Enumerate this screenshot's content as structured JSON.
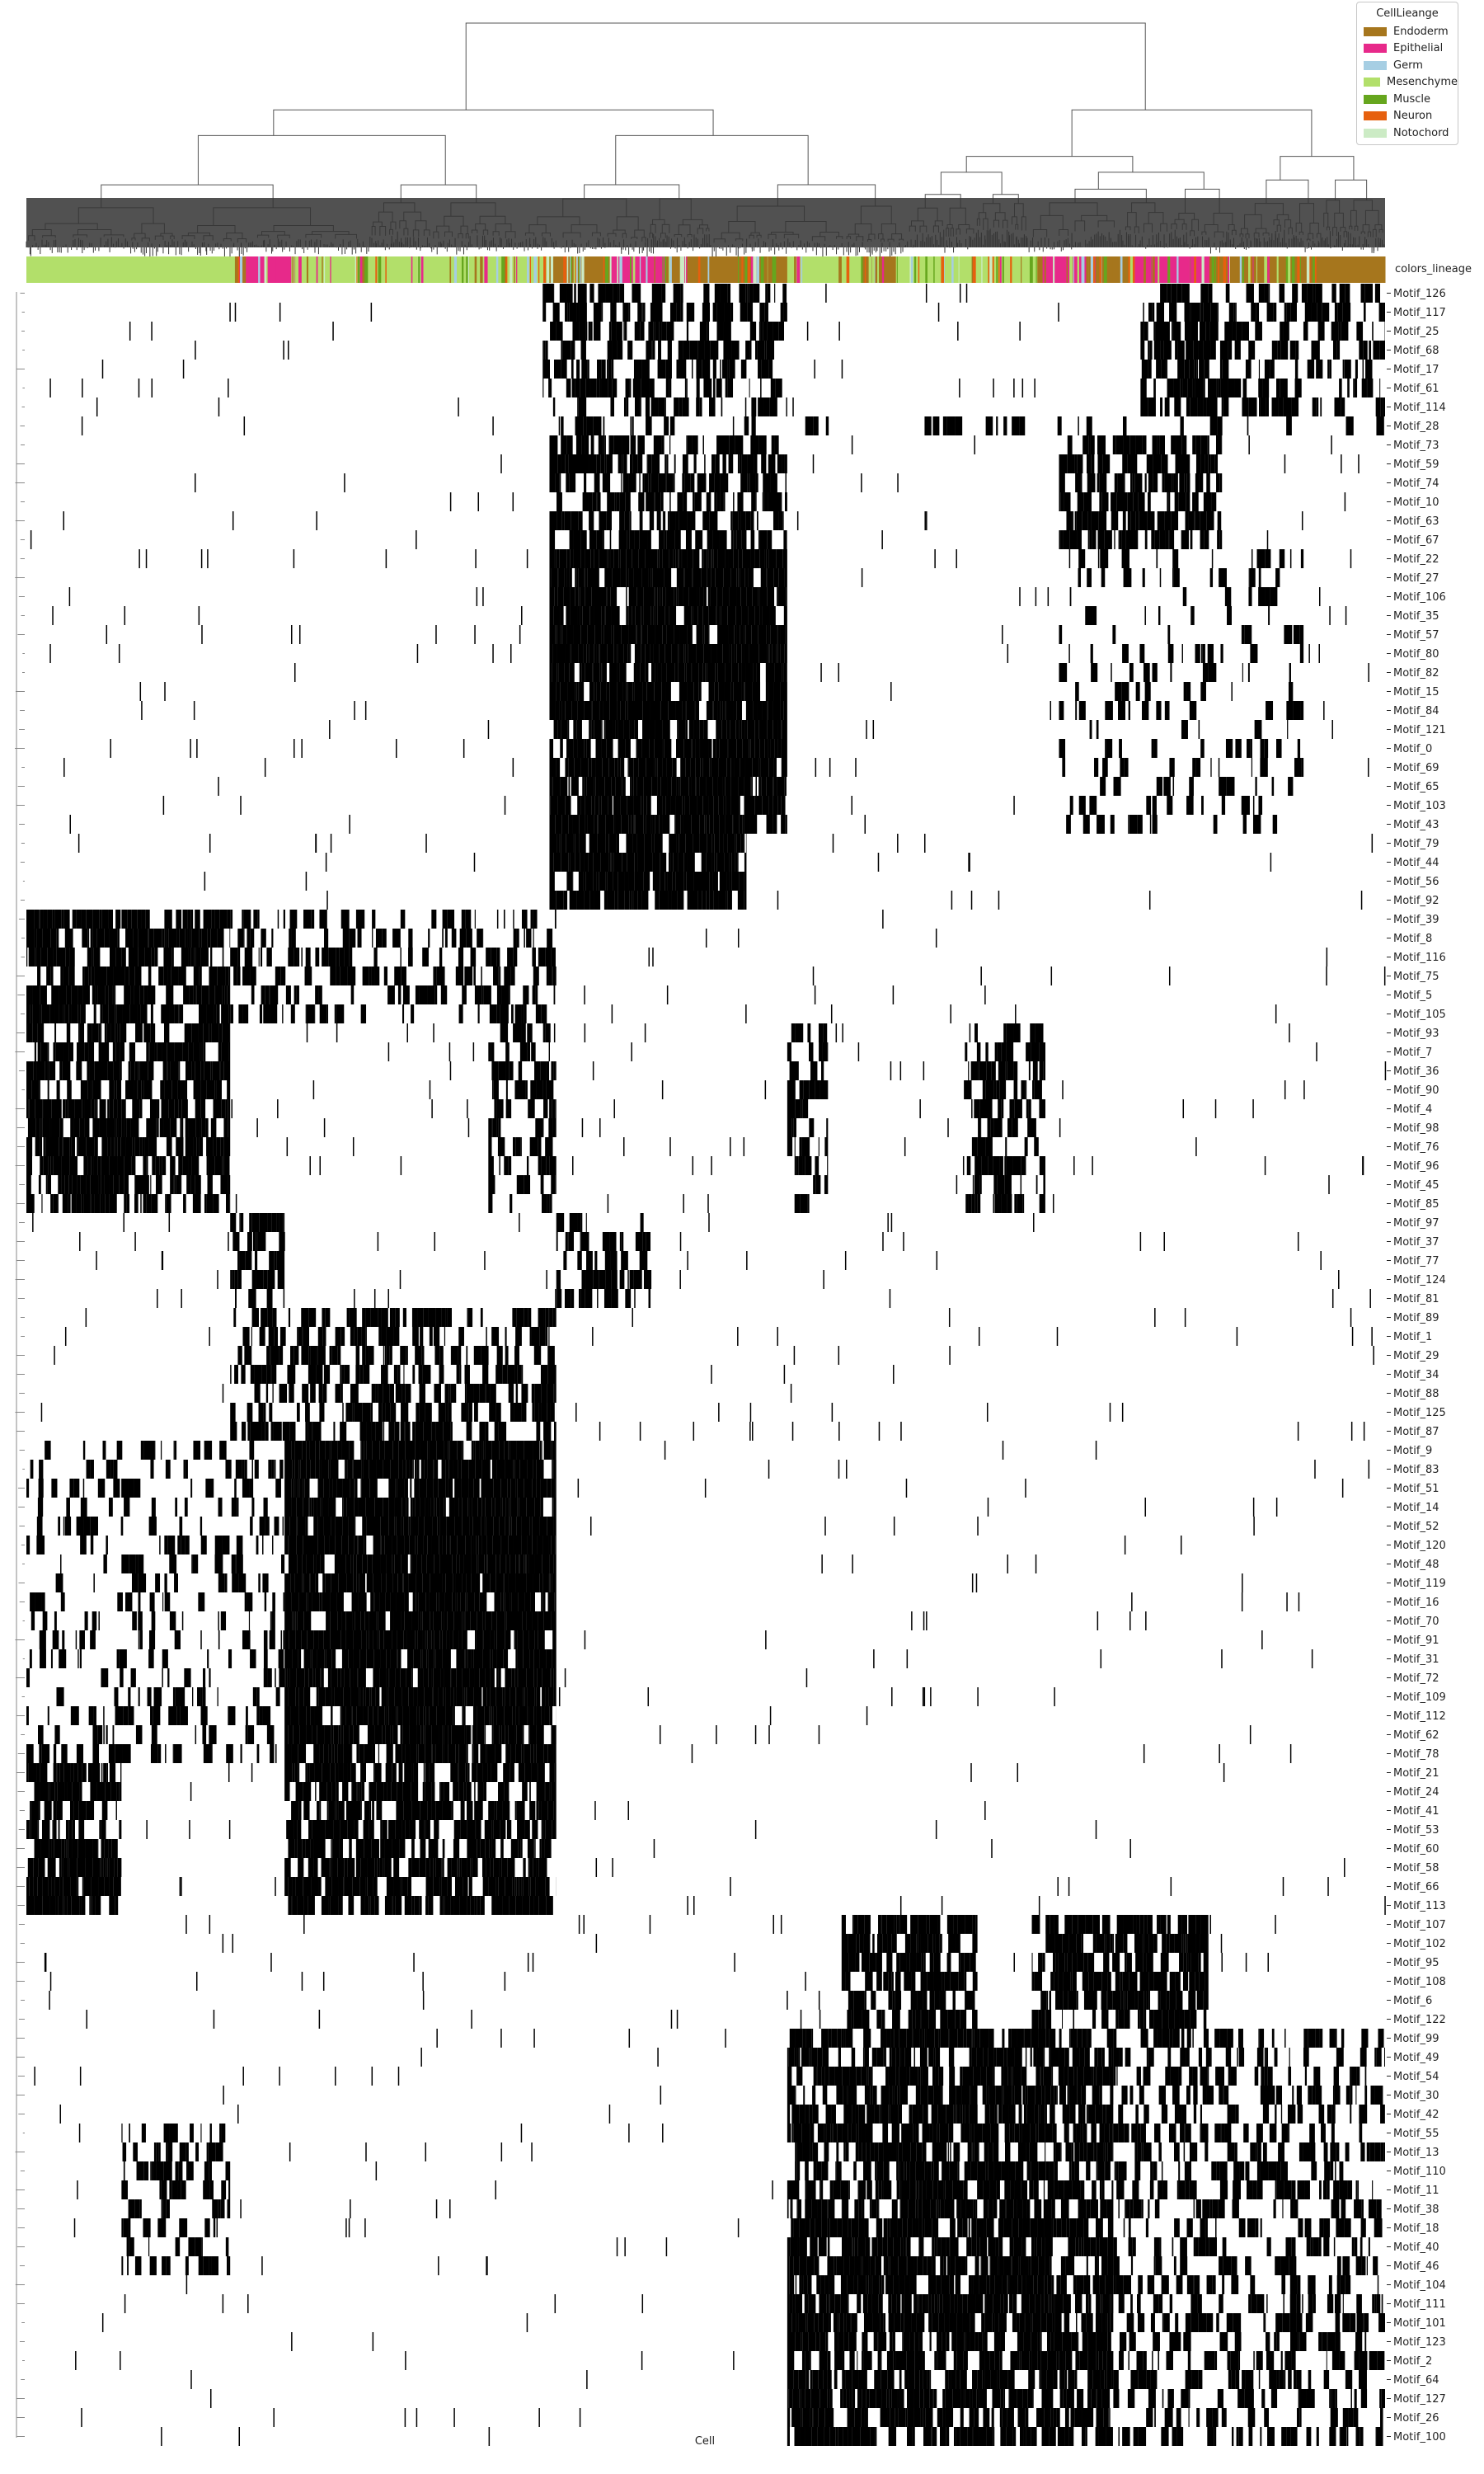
{
  "chart_data": {
    "type": "heatmap",
    "title": "",
    "xlabel": "Cell",
    "ylabel": "",
    "values": "binary motif activity (present = black, absent = white), hierarchically clustered cells (columns) and motifs (rows)",
    "annotation_row_label": "colors_lineage",
    "legend": {
      "title": "CellLieange",
      "placement": "top-right",
      "entries": [
        {
          "label": "Endoderm",
          "color": "#a6761d"
        },
        {
          "label": "Epithelial",
          "color": "#e7298a"
        },
        {
          "label": "Germ",
          "color": "#a6cee3"
        },
        {
          "label": "Mesenchyme",
          "color": "#b2df6a"
        },
        {
          "label": "Muscle",
          "color": "#66a61e"
        },
        {
          "label": "Neuron",
          "color": "#e6600e"
        },
        {
          "label": "Notochord",
          "color": "#ccebc5"
        }
      ]
    },
    "column_lineage_order": [
      "Mesenchyme",
      "Epithelial",
      "Mesenchyme",
      "Endoderm",
      "Epithelial",
      "Endoderm",
      "Mesenchyme",
      "Endoderm",
      "Mesenchyme",
      "Epithelial",
      "Endoderm",
      "Epithelial",
      "Endoderm"
    ],
    "row_labels": [
      "Motif_126",
      "Motif_117",
      "Motif_25",
      "Motif_68",
      "Motif_17",
      "Motif_61",
      "Motif_114",
      "Motif_28",
      "Motif_73",
      "Motif_59",
      "Motif_74",
      "Motif_10",
      "Motif_63",
      "Motif_67",
      "Motif_22",
      "Motif_27",
      "Motif_106",
      "Motif_35",
      "Motif_57",
      "Motif_80",
      "Motif_82",
      "Motif_15",
      "Motif_84",
      "Motif_121",
      "Motif_0",
      "Motif_69",
      "Motif_65",
      "Motif_103",
      "Motif_43",
      "Motif_79",
      "Motif_44",
      "Motif_56",
      "Motif_92",
      "Motif_39",
      "Motif_8",
      "Motif_116",
      "Motif_75",
      "Motif_5",
      "Motif_105",
      "Motif_93",
      "Motif_7",
      "Motif_36",
      "Motif_90",
      "Motif_4",
      "Motif_98",
      "Motif_76",
      "Motif_96",
      "Motif_45",
      "Motif_85",
      "Motif_97",
      "Motif_37",
      "Motif_77",
      "Motif_124",
      "Motif_81",
      "Motif_89",
      "Motif_1",
      "Motif_29",
      "Motif_34",
      "Motif_88",
      "Motif_125",
      "Motif_87",
      "Motif_9",
      "Motif_83",
      "Motif_51",
      "Motif_14",
      "Motif_52",
      "Motif_120",
      "Motif_48",
      "Motif_119",
      "Motif_16",
      "Motif_70",
      "Motif_91",
      "Motif_31",
      "Motif_72",
      "Motif_109",
      "Motif_112",
      "Motif_62",
      "Motif_78",
      "Motif_21",
      "Motif_24",
      "Motif_41",
      "Motif_53",
      "Motif_60",
      "Motif_58",
      "Motif_66",
      "Motif_113",
      "Motif_107",
      "Motif_102",
      "Motif_95",
      "Motif_108",
      "Motif_6",
      "Motif_122",
      "Motif_99",
      "Motif_49",
      "Motif_54",
      "Motif_30",
      "Motif_42",
      "Motif_55",
      "Motif_13",
      "Motif_110",
      "Motif_11",
      "Motif_38",
      "Motif_18",
      "Motif_40",
      "Motif_46",
      "Motif_104",
      "Motif_111",
      "Motif_101",
      "Motif_123",
      "Motif_2",
      "Motif_64",
      "Motif_127",
      "Motif_26",
      "Motif_100"
    ],
    "blocks": [
      {
        "rows": [
          0,
          6
        ],
        "cols": [
          [
            0.38,
            0.56
          ],
          [
            0.82,
            1.0
          ]
        ],
        "density": 0.55
      },
      {
        "rows": [
          7,
          7
        ],
        "cols": [
          [
            0.38,
            1.0
          ]
        ],
        "density": 0.25
      },
      {
        "rows": [
          8,
          13
        ],
        "cols": [
          [
            0.385,
            0.56
          ],
          [
            0.76,
            0.88
          ]
        ],
        "density": 0.7
      },
      {
        "rows": [
          14,
          28
        ],
        "cols": [
          [
            0.385,
            0.56
          ]
        ],
        "density": 0.92
      },
      {
        "rows": [
          14,
          28
        ],
        "cols": [
          [
            0.76,
            0.94
          ]
        ],
        "density": 0.18
      },
      {
        "rows": [
          29,
          32
        ],
        "cols": [
          [
            0.385,
            0.53
          ]
        ],
        "density": 0.85
      },
      {
        "rows": [
          33,
          48
        ],
        "cols": [
          [
            0.0,
            0.15
          ]
        ],
        "density": 0.8
      },
      {
        "rows": [
          33,
          38
        ],
        "cols": [
          [
            0.15,
            0.39
          ]
        ],
        "density": 0.45
      },
      {
        "rows": [
          39,
          48
        ],
        "cols": [
          [
            0.34,
            0.39
          ],
          [
            0.56,
            0.59
          ],
          [
            0.69,
            0.75
          ]
        ],
        "density": 0.5
      },
      {
        "rows": [
          49,
          53
        ],
        "cols": [
          [
            0.15,
            0.19
          ],
          [
            0.39,
            0.46
          ]
        ],
        "density": 0.5
      },
      {
        "rows": [
          54,
          60
        ],
        "cols": [
          [
            0.15,
            0.39
          ]
        ],
        "density": 0.55
      },
      {
        "rows": [
          61,
          77
        ],
        "cols": [
          [
            0.19,
            0.39
          ]
        ],
        "density": 0.93
      },
      {
        "rows": [
          61,
          77
        ],
        "cols": [
          [
            0.0,
            0.19
          ]
        ],
        "density": 0.25
      },
      {
        "rows": [
          78,
          85
        ],
        "cols": [
          [
            0.0,
            0.07
          ],
          [
            0.19,
            0.39
          ]
        ],
        "density": 0.75
      },
      {
        "rows": [
          86,
          91
        ],
        "cols": [
          [
            0.74,
            0.87
          ],
          [
            0.6,
            0.7
          ]
        ],
        "density": 0.75
      },
      {
        "rows": [
          92,
          113
        ],
        "cols": [
          [
            0.56,
            0.8
          ]
        ],
        "density": 0.8
      },
      {
        "rows": [
          92,
          113
        ],
        "cols": [
          [
            0.8,
            1.0
          ]
        ],
        "density": 0.4
      },
      {
        "rows": [
          97,
          104
        ],
        "cols": [
          [
            0.07,
            0.15
          ]
        ],
        "density": 0.45
      }
    ]
  }
}
